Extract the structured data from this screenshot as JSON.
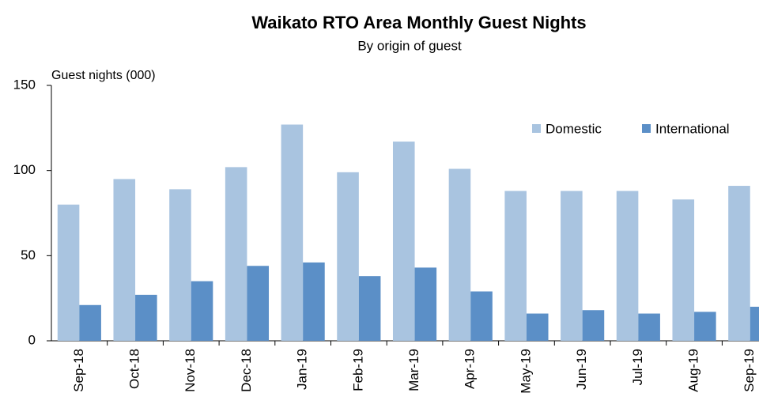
{
  "chart_data": {
    "type": "bar",
    "title": "Waikato RTO Area Monthly Guest Nights",
    "subtitle": "By origin  of guest",
    "y_label": "Guest nights (000)",
    "categories": [
      "Sep-18",
      "Oct-18",
      "Nov-18",
      "Dec-18",
      "Jan-19",
      "Feb-19",
      "Mar-19",
      "Apr-19",
      "May-19",
      "Jun-19",
      "Jul-19",
      "Aug-19",
      "Sep-19"
    ],
    "series": [
      {
        "name": "Domestic",
        "color": "#a9c4e0",
        "values": [
          80,
          95,
          89,
          102,
          127,
          99,
          117,
          101,
          88,
          88,
          88,
          83,
          91
        ]
      },
      {
        "name": "International",
        "color": "#5b8fc7",
        "values": [
          21,
          27,
          35,
          44,
          46,
          38,
          43,
          29,
          16,
          18,
          16,
          17,
          20
        ]
      }
    ],
    "ylim": [
      0,
      150
    ],
    "yticks": [
      0,
      50,
      100,
      150
    ],
    "grid": false,
    "legend": "top-right"
  }
}
